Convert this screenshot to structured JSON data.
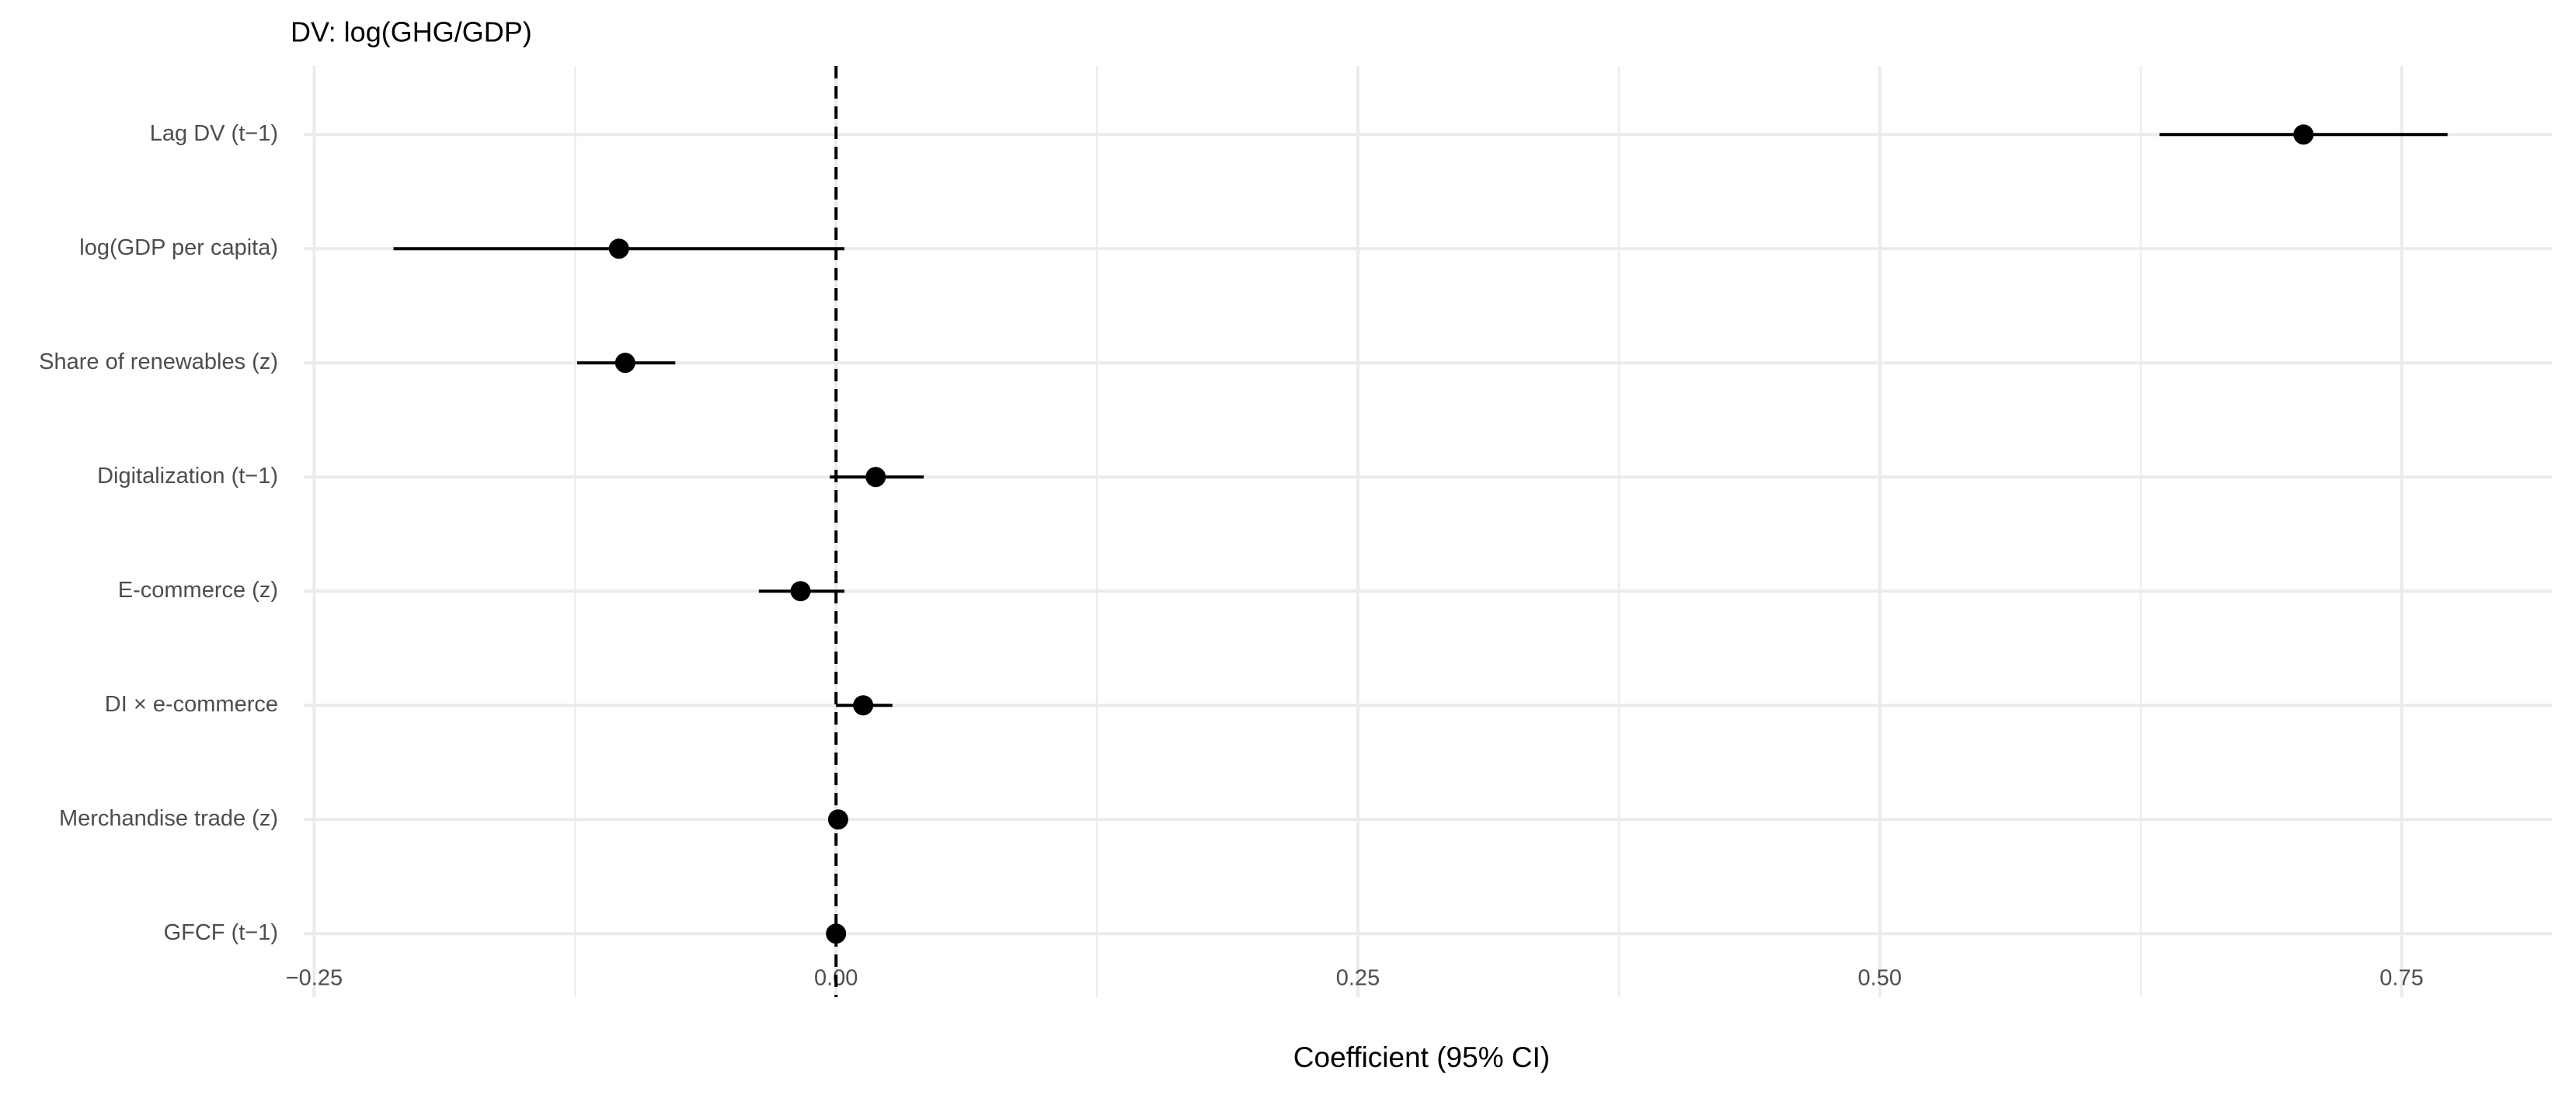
{
  "chart_data": {
    "type": "coefplot",
    "title": "DV: log(GHG/GDP)",
    "x_label": "Coefficient (95% CI)",
    "categories": [
      "Lag DV (t−1)",
      "log(GDP per capita)",
      "Share of renewables (z)",
      "Digitalization (t−1)",
      "E-commerce (z)",
      "DI × e-commerce",
      "Merchandise trade (z)",
      "GFCF (t−1)"
    ],
    "values": [
      0.703,
      -0.104,
      -0.101,
      0.019,
      -0.017,
      0.013,
      0.001,
      0.0
    ],
    "ci_low": [
      0.634,
      -0.212,
      -0.124,
      -0.003,
      -0.037,
      0.0,
      0.0,
      -0.001
    ],
    "ci_high": [
      0.772,
      0.004,
      -0.077,
      0.042,
      0.004,
      0.027,
      0.002,
      0.001
    ],
    "color": "#000000",
    "xlim": [
      -0.255,
      0.822
    ],
    "xticks": [
      {
        "value": -0.25,
        "label": "−0.25"
      },
      {
        "value": 0,
        "label": "0.00"
      },
      {
        "value": 0.25,
        "label": "0.25"
      },
      {
        "value": 0.5,
        "label": "0.50"
      },
      {
        "value": 0.75,
        "label": "0.75"
      }
    ],
    "reference_line": 0,
    "grid": true,
    "minor_grid": true
  }
}
